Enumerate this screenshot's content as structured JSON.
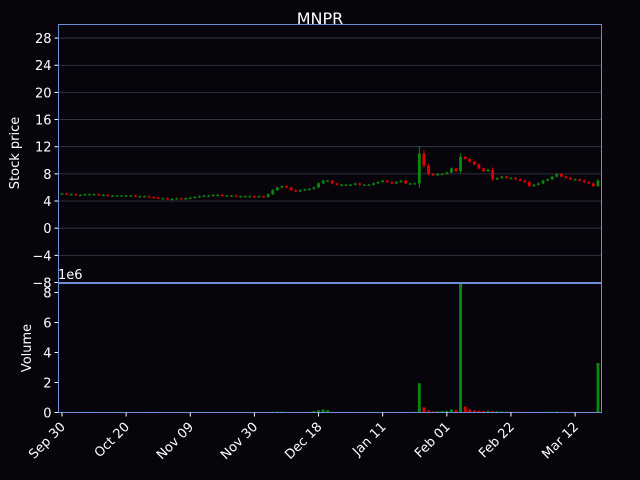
{
  "colors": {
    "background": "#07040c",
    "frame": "#6a8fd6",
    "grid": "#3a3a4a",
    "up": "#0a8a0a",
    "down": "#e00000",
    "text": "#ffffff"
  },
  "chart_data": [
    {
      "type": "candlestick",
      "title": "MNPR",
      "ylabel": "Stock price",
      "ylim": [
        -8,
        30
      ],
      "yticks": [
        -8,
        -4,
        0,
        4,
        8,
        12,
        16,
        20,
        24,
        28
      ],
      "ytick_labels": [
        "−8",
        "−4",
        "0",
        "4",
        "8",
        "12",
        "16",
        "20",
        "24",
        "28"
      ],
      "grid": true,
      "x_tick_labels": [
        {
          "label": "Sep 30",
          "index": 0
        },
        {
          "label": "Oct 20",
          "index": 14
        },
        {
          "label": "Nov 09",
          "index": 28
        },
        {
          "label": "Nov 30",
          "index": 42
        },
        {
          "label": "Dec 18",
          "index": 56
        },
        {
          "label": "Jan 11",
          "index": 70
        },
        {
          "label": "Feb 01",
          "index": 84
        },
        {
          "label": "Feb 22",
          "index": 98
        },
        {
          "label": "Mar 12",
          "index": 112
        }
      ],
      "close": [
        5.1,
        5.0,
        5.0,
        4.9,
        4.9,
        5.0,
        5.0,
        5.0,
        4.9,
        4.9,
        4.8,
        4.8,
        4.8,
        4.8,
        4.8,
        4.8,
        4.7,
        4.7,
        4.7,
        4.6,
        4.5,
        4.4,
        4.4,
        4.3,
        4.3,
        4.4,
        4.3,
        4.4,
        4.5,
        4.6,
        4.7,
        4.8,
        4.8,
        4.9,
        4.9,
        4.8,
        4.8,
        4.8,
        4.7,
        4.7,
        4.7,
        4.7,
        4.6,
        4.7,
        4.6,
        5.0,
        5.6,
        6.0,
        6.2,
        6.0,
        5.6,
        5.4,
        5.6,
        5.7,
        5.8,
        6.0,
        6.6,
        7.0,
        7.0,
        6.6,
        6.4,
        6.4,
        6.4,
        6.4,
        6.6,
        6.4,
        6.4,
        6.4,
        6.6,
        6.8,
        7.0,
        6.8,
        6.6,
        6.8,
        7.0,
        6.6,
        6.6,
        6.6,
        11.0,
        9.2,
        8.0,
        7.8,
        8.0,
        8.0,
        8.2,
        8.8,
        8.4,
        10.5,
        10.2,
        9.8,
        9.4,
        8.8,
        8.4,
        8.6,
        7.2,
        7.4,
        7.6,
        7.4,
        7.4,
        7.2,
        7.0,
        6.8,
        6.2,
        6.4,
        6.6,
        7.0,
        7.2,
        7.6,
        8.0,
        7.6,
        7.4,
        7.2,
        7.2,
        7.0,
        6.8,
        6.6,
        6.2,
        7.0
      ],
      "volume_in_millions": [
        0.01,
        0.0,
        0.0,
        0.0,
        0.0,
        0.0,
        0.0,
        0.0,
        0.0,
        0.0,
        0.0,
        0.0,
        0.0,
        0.0,
        0.0,
        0.0,
        0.0,
        0.0,
        0.0,
        0.0,
        0.0,
        0.0,
        0.0,
        0.0,
        0.0,
        0.0,
        0.0,
        0.0,
        0.0,
        0.0,
        0.0,
        0.0,
        0.0,
        0.0,
        0.0,
        0.0,
        0.0,
        0.0,
        0.0,
        0.0,
        0.0,
        0.0,
        0.0,
        0.0,
        0.0,
        0.01,
        0.04,
        0.06,
        0.06,
        0.04,
        0.03,
        0.02,
        0.03,
        0.02,
        0.02,
        0.1,
        0.15,
        0.2,
        0.15,
        0.05,
        0.03,
        0.02,
        0.02,
        0.02,
        0.03,
        0.02,
        0.02,
        0.02,
        0.03,
        0.03,
        0.03,
        0.02,
        0.02,
        0.02,
        0.03,
        0.02,
        0.02,
        0.05,
        1.95,
        0.35,
        0.15,
        0.08,
        0.08,
        0.1,
        0.12,
        0.2,
        0.15,
        8.6,
        0.4,
        0.2,
        0.15,
        0.12,
        0.1,
        0.12,
        0.1,
        0.08,
        0.07,
        0.06,
        0.05,
        0.05,
        0.04,
        0.04,
        0.03,
        0.03,
        0.03,
        0.04,
        0.05,
        0.05,
        0.06,
        0.05,
        0.04,
        0.04,
        0.03,
        0.03,
        0.03,
        0.03,
        0.04,
        3.3
      ]
    },
    {
      "type": "bar",
      "ylabel": "Volume",
      "scale_label": "1e6",
      "ylim": [
        0,
        8.6
      ],
      "yticks": [
        0,
        2,
        4,
        6,
        8
      ],
      "ytick_labels": [
        "0",
        "2",
        "4",
        "6",
        "8"
      ],
      "grid": false
    }
  ]
}
